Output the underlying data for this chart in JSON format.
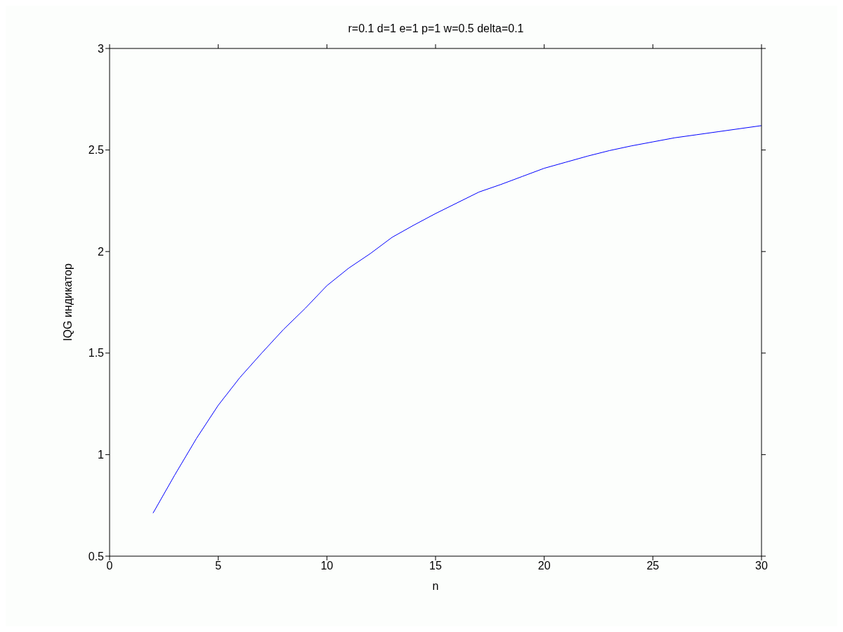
{
  "chart_data": {
    "type": "line",
    "title": "r=0.1 d=1 e=1 p=1 w=0.5 delta=0.1",
    "xlabel": "n",
    "ylabel": "IQG индикатор",
    "x": [
      2,
      3,
      4,
      5,
      6,
      7,
      8,
      9,
      10,
      11,
      12,
      13,
      14,
      15,
      16,
      17,
      18,
      19,
      20,
      21,
      22,
      23,
      24,
      25,
      26,
      27,
      28,
      29,
      30
    ],
    "series": [
      {
        "color": "#0000ff",
        "values": [
          0.712,
          0.9,
          1.08,
          1.243,
          1.38,
          1.5,
          1.616,
          1.72,
          1.832,
          1.918,
          1.99,
          2.07,
          2.13,
          2.187,
          2.24,
          2.293,
          2.33,
          2.37,
          2.41,
          2.44,
          2.47,
          2.497,
          2.52,
          2.54,
          2.56,
          2.575,
          2.59,
          2.605,
          2.62
        ]
      }
    ],
    "xlim": [
      0,
      30
    ],
    "xticks": [
      0,
      5,
      10,
      15,
      20,
      25,
      30
    ],
    "ylim": [
      0.5,
      3
    ],
    "yticks": [
      0.5,
      1,
      1.5,
      2,
      2.5,
      3
    ],
    "grid": false,
    "legend": false,
    "marker": "none",
    "line_style": "solid"
  }
}
